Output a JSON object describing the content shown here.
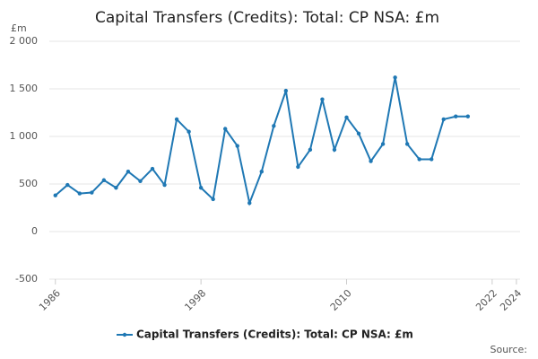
{
  "chart_data": {
    "type": "line",
    "title": "Capital Transfers (Credits): Total: CP NSA: £m",
    "y_label": "£m",
    "source": "Source:",
    "x": [
      1986,
      1987,
      1988,
      1989,
      1990,
      1991,
      1992,
      1993,
      1994,
      1995,
      1996,
      1997,
      1998,
      1999,
      2000,
      2001,
      2002,
      2003,
      2004,
      2005,
      2006,
      2007,
      2008,
      2009,
      2010,
      2011,
      2012,
      2013,
      2014,
      2015,
      2016,
      2017,
      2018,
      2019,
      2020
    ],
    "series": [
      {
        "name": "Capital Transfers (Credits): Total: CP NSA: £m",
        "color": "#1f78b4",
        "values": [
          380,
          490,
          400,
          410,
          540,
          460,
          630,
          530,
          660,
          490,
          1180,
          1050,
          460,
          340,
          1080,
          900,
          300,
          630,
          1110,
          1480,
          680,
          860,
          1390,
          860,
          1200,
          1030,
          740,
          920,
          1620,
          920,
          760,
          760,
          1180,
          1210,
          1210
        ]
      }
    ],
    "xlim": [
      1985.5,
      2024.3
    ],
    "xticks": [
      1986,
      1998,
      2010,
      2022,
      2024
    ],
    "ylim": [
      -500,
      2000
    ],
    "yticks": [
      {
        "value": 2000,
        "label": "2 000"
      },
      {
        "value": 1500,
        "label": "1 500"
      },
      {
        "value": 1000,
        "label": "1 000"
      },
      500,
      0,
      -500
    ],
    "grid": true
  }
}
